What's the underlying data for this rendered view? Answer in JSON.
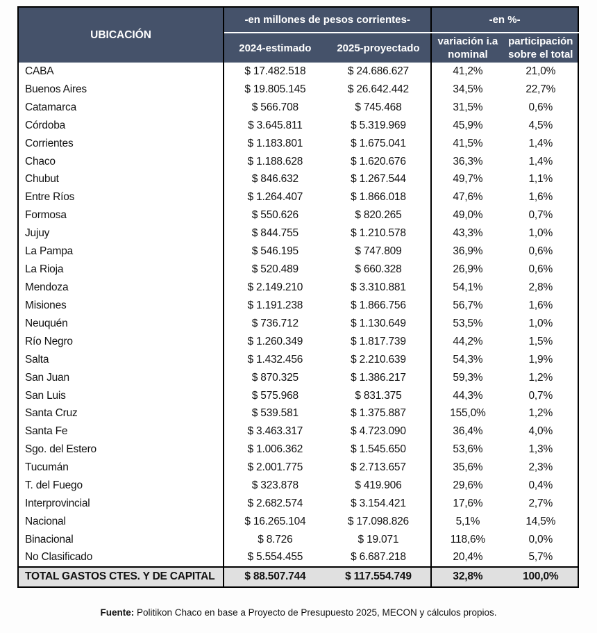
{
  "colors": {
    "header_bg": "#45526A",
    "header_text": "#FFFFFF",
    "total_row_bg": "#E0E0E0",
    "border": "#000000",
    "body_text": "#111111"
  },
  "chart_data": {
    "type": "table",
    "title": "",
    "column_groups": [
      {
        "label": "-en millones de pesos corrientes-",
        "spans": [
          "2024-estimado",
          "2025-proyectado"
        ]
      },
      {
        "label": "-en %-",
        "spans": [
          "variación i.a nominal",
          "participación sobre el total"
        ]
      }
    ],
    "columns": [
      "UBICACIÓN",
      "2024-estimado",
      "2025-proyectado",
      "variación i.a nominal",
      "participación sobre el total"
    ],
    "rows": [
      [
        "CABA",
        "$ 17.482.518",
        "$ 24.686.627",
        "41,2%",
        "21,0%"
      ],
      [
        "Buenos Aires",
        "$ 19.805.145",
        "$ 26.642.442",
        "34,5%",
        "22,7%"
      ],
      [
        "Catamarca",
        "$ 566.708",
        "$ 745.468",
        "31,5%",
        "0,6%"
      ],
      [
        "Córdoba",
        "$ 3.645.811",
        "$ 5.319.969",
        "45,9%",
        "4,5%"
      ],
      [
        "Corrientes",
        "$ 1.183.801",
        "$ 1.675.041",
        "41,5%",
        "1,4%"
      ],
      [
        "Chaco",
        "$ 1.188.628",
        "$ 1.620.676",
        "36,3%",
        "1,4%"
      ],
      [
        "Chubut",
        "$ 846.632",
        "$ 1.267.544",
        "49,7%",
        "1,1%"
      ],
      [
        "Entre Ríos",
        "$ 1.264.407",
        "$ 1.866.018",
        "47,6%",
        "1,6%"
      ],
      [
        "Formosa",
        "$ 550.626",
        "$ 820.265",
        "49,0%",
        "0,7%"
      ],
      [
        "Jujuy",
        "$ 844.755",
        "$ 1.210.578",
        "43,3%",
        "1,0%"
      ],
      [
        "La Pampa",
        "$ 546.195",
        "$ 747.809",
        "36,9%",
        "0,6%"
      ],
      [
        "La Rioja",
        "$ 520.489",
        "$ 660.328",
        "26,9%",
        "0,6%"
      ],
      [
        "Mendoza",
        "$ 2.149.210",
        "$ 3.310.881",
        "54,1%",
        "2,8%"
      ],
      [
        "Misiones",
        "$ 1.191.238",
        "$ 1.866.756",
        "56,7%",
        "1,6%"
      ],
      [
        "Neuquén",
        "$ 736.712",
        "$ 1.130.649",
        "53,5%",
        "1,0%"
      ],
      [
        "Río Negro",
        "$ 1.260.349",
        "$ 1.817.739",
        "44,2%",
        "1,5%"
      ],
      [
        "Salta",
        "$ 1.432.456",
        "$ 2.210.639",
        "54,3%",
        "1,9%"
      ],
      [
        "San Juan",
        "$ 870.325",
        "$ 1.386.217",
        "59,3%",
        "1,2%"
      ],
      [
        "San Luis",
        "$ 575.968",
        "$ 831.375",
        "44,3%",
        "0,7%"
      ],
      [
        "Santa Cruz",
        "$ 539.581",
        "$ 1.375.887",
        "155,0%",
        "1,2%"
      ],
      [
        "Santa Fe",
        "$ 3.463.317",
        "$ 4.723.090",
        "36,4%",
        "4,0%"
      ],
      [
        "Sgo. del Estero",
        "$ 1.006.362",
        "$ 1.545.650",
        "53,6%",
        "1,3%"
      ],
      [
        "Tucumán",
        "$ 2.001.775",
        "$ 2.713.657",
        "35,6%",
        "2,3%"
      ],
      [
        "T. del Fuego",
        "$ 323.878",
        "$ 419.906",
        "29,6%",
        "0,4%"
      ],
      [
        "Interprovincial",
        "$ 2.682.574",
        "$ 3.154.421",
        "17,6%",
        "2,7%"
      ],
      [
        "Nacional",
        "$ 16.265.104",
        "$ 17.098.826",
        "5,1%",
        "14,5%"
      ],
      [
        "Binacional",
        "$ 8.726",
        "$ 19.071",
        "118,6%",
        "0,0%"
      ],
      [
        "No Clasificado",
        "$ 5.554.455",
        "$ 6.687.218",
        "20,4%",
        "5,7%"
      ]
    ],
    "total_row": {
      "label": "TOTAL GASTOS CTES. Y DE CAPITAL",
      "v2024": "$ 88.507.744",
      "v2025": "$ 117.554.749",
      "variacion": "32,8%",
      "participacion": "100,0%"
    }
  },
  "header": {
    "ubicacion": "UBICACIÓN",
    "group_pesos": "-en millones de pesos corrientes-",
    "group_pct": "-en %-",
    "col_2024": "2024-estimado",
    "col_2025": "2025-proyectado",
    "col_variacion": "variación i.a nominal",
    "col_participacion": "participación sobre el total"
  },
  "footer": {
    "source_label": "Fuente:",
    "source_text": " Politikon Chaco en base a Proyecto de Presupuesto 2025, MECON y cálculos propios."
  }
}
